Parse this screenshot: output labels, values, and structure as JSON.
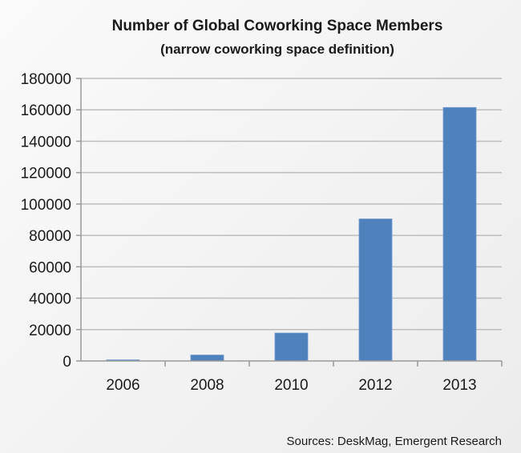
{
  "chart_data": {
    "type": "bar",
    "title": "Number of Global Coworking Space Members",
    "subtitle": "(narrow coworking space definition)",
    "categories": [
      "2006",
      "2008",
      "2010",
      "2012",
      "2013"
    ],
    "values": [
      700,
      3800,
      17800,
      90500,
      161500
    ],
    "xlabel": "",
    "ylabel": "",
    "ylim": [
      0,
      180000
    ],
    "yticks": [
      "0",
      "20000",
      "40000",
      "60000",
      "80000",
      "100000",
      "120000",
      "140000",
      "160000",
      "180000"
    ],
    "grid": true,
    "bar_color": "#4f81bd",
    "source": "Sources: DeskMag, Emergent Research"
  }
}
